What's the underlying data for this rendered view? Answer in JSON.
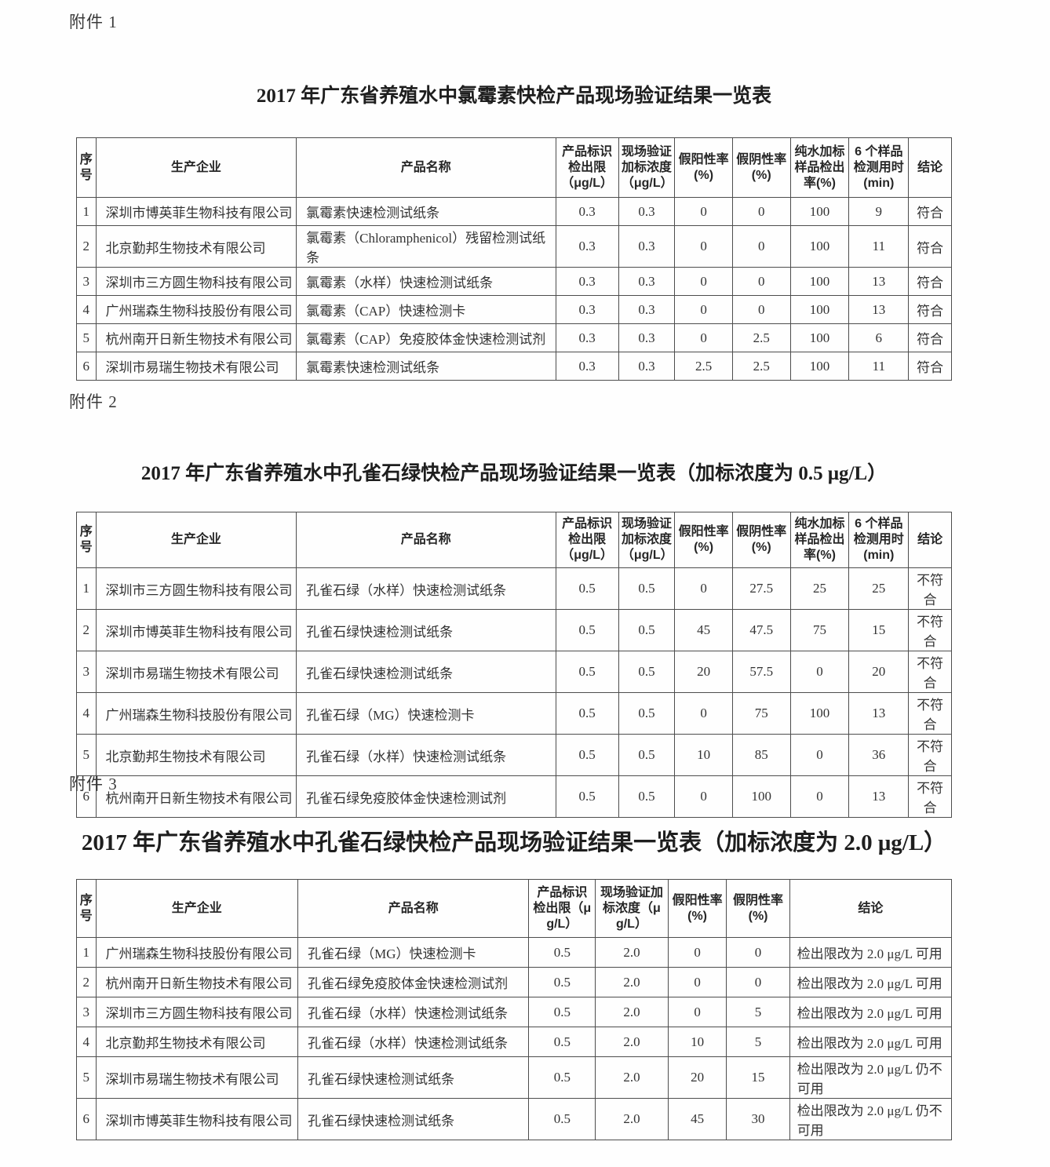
{
  "attachments": [
    {
      "label": "附件 1",
      "title": "2017 年广东省养殖水中氯霉素快检产品现场验证结果一览表",
      "headers": [
        "序号",
        "生产企业",
        "产品名称",
        "产品标识检出限（μg/L）",
        "现场验证加标浓度（μg/L）",
        "假阳性率(%)",
        "假阴性率(%)",
        "纯水加标样品检出率(%)",
        "6 个样品检测用时(min)",
        "结论"
      ],
      "rows": [
        [
          "1",
          "深圳市博英菲生物科技有限公司",
          "氯霉素快速检测试纸条",
          "0.3",
          "0.3",
          "0",
          "0",
          "100",
          "9",
          "符合"
        ],
        [
          "2",
          "北京勤邦生物技术有限公司",
          "氯霉素（Chloramphenicol）残留检测试纸条",
          "0.3",
          "0.3",
          "0",
          "0",
          "100",
          "11",
          "符合"
        ],
        [
          "3",
          "深圳市三方圆生物科技有限公司",
          "氯霉素（水样）快速检测试纸条",
          "0.3",
          "0.3",
          "0",
          "0",
          "100",
          "13",
          "符合"
        ],
        [
          "4",
          "广州瑞森生物科技股份有限公司",
          "氯霉素（CAP）快速检测卡",
          "0.3",
          "0.3",
          "0",
          "0",
          "100",
          "13",
          "符合"
        ],
        [
          "5",
          "杭州南开日新生物技术有限公司",
          "氯霉素（CAP）免疫胶体金快速检测试剂",
          "0.3",
          "0.3",
          "0",
          "2.5",
          "100",
          "6",
          "符合"
        ],
        [
          "6",
          "深圳市易瑞生物技术有限公司",
          "氯霉素快速检测试纸条",
          "0.3",
          "0.3",
          "2.5",
          "2.5",
          "100",
          "11",
          "符合"
        ]
      ]
    },
    {
      "label": "附件 2",
      "title": "2017 年广东省养殖水中孔雀石绿快检产品现场验证结果一览表（加标浓度为 0.5 μg/L）",
      "headers": [
        "序号",
        "生产企业",
        "产品名称",
        "产品标识检出限（μg/L）",
        "现场验证加标浓度（μg/L）",
        "假阳性率(%)",
        "假阴性率(%)",
        "纯水加标样品检出率(%)",
        "6 个样品检测用时(min)",
        "结论"
      ],
      "rows": [
        [
          "1",
          "深圳市三方圆生物科技有限公司",
          "孔雀石绿（水样）快速检测试纸条",
          "0.5",
          "0.5",
          "0",
          "27.5",
          "25",
          "25",
          "不符合"
        ],
        [
          "2",
          "深圳市博英菲生物科技有限公司",
          "孔雀石绿快速检测试纸条",
          "0.5",
          "0.5",
          "45",
          "47.5",
          "75",
          "15",
          "不符合"
        ],
        [
          "3",
          "深圳市易瑞生物技术有限公司",
          "孔雀石绿快速检测试纸条",
          "0.5",
          "0.5",
          "20",
          "57.5",
          "0",
          "20",
          "不符合"
        ],
        [
          "4",
          "广州瑞森生物科技股份有限公司",
          "孔雀石绿（MG）快速检测卡",
          "0.5",
          "0.5",
          "0",
          "75",
          "100",
          "13",
          "不符合"
        ],
        [
          "5",
          "北京勤邦生物技术有限公司",
          "孔雀石绿（水样）快速检测试纸条",
          "0.5",
          "0.5",
          "10",
          "85",
          "0",
          "36",
          "不符合"
        ],
        [
          "6",
          "杭州南开日新生物技术有限公司",
          "孔雀石绿免疫胶体金快速检测试剂",
          "0.5",
          "0.5",
          "0",
          "100",
          "0",
          "13",
          "不符合"
        ]
      ]
    },
    {
      "label": "附件 3",
      "title": "2017 年广东省养殖水中孔雀石绿快检产品现场验证结果一览表（加标浓度为 2.0 μg/L）",
      "headers": [
        "序号",
        "生产企业",
        "产品名称",
        "产品标识检出限（μ g/L）",
        "现场验证加标浓度（μg/L）",
        "假阳性率(%)",
        "假阴性率(%)",
        "结论"
      ],
      "rows": [
        [
          "1",
          "广州瑞森生物科技股份有限公司",
          "孔雀石绿（MG）快速检测卡",
          "0.5",
          "2.0",
          "0",
          "0",
          "检出限改为 2.0 μg/L 可用"
        ],
        [
          "2",
          "杭州南开日新生物技术有限公司",
          "孔雀石绿免疫胶体金快速检测试剂",
          "0.5",
          "2.0",
          "0",
          "0",
          "检出限改为 2.0 μg/L 可用"
        ],
        [
          "3",
          "深圳市三方圆生物科技有限公司",
          "孔雀石绿（水样）快速检测试纸条",
          "0.5",
          "2.0",
          "0",
          "5",
          "检出限改为 2.0 μg/L 可用"
        ],
        [
          "4",
          "北京勤邦生物技术有限公司",
          "孔雀石绿（水样）快速检测试纸条",
          "0.5",
          "2.0",
          "10",
          "5",
          "检出限改为 2.0 μg/L 可用"
        ],
        [
          "5",
          "深圳市易瑞生物技术有限公司",
          "孔雀石绿快速检测试纸条",
          "0.5",
          "2.0",
          "20",
          "15",
          "检出限改为 2.0 μg/L 仍不可用"
        ],
        [
          "6",
          "深圳市博英菲生物科技有限公司",
          "孔雀石绿快速检测试纸条",
          "0.5",
          "2.0",
          "45",
          "30",
          "检出限改为 2.0 μg/L 仍不可用"
        ]
      ]
    }
  ]
}
